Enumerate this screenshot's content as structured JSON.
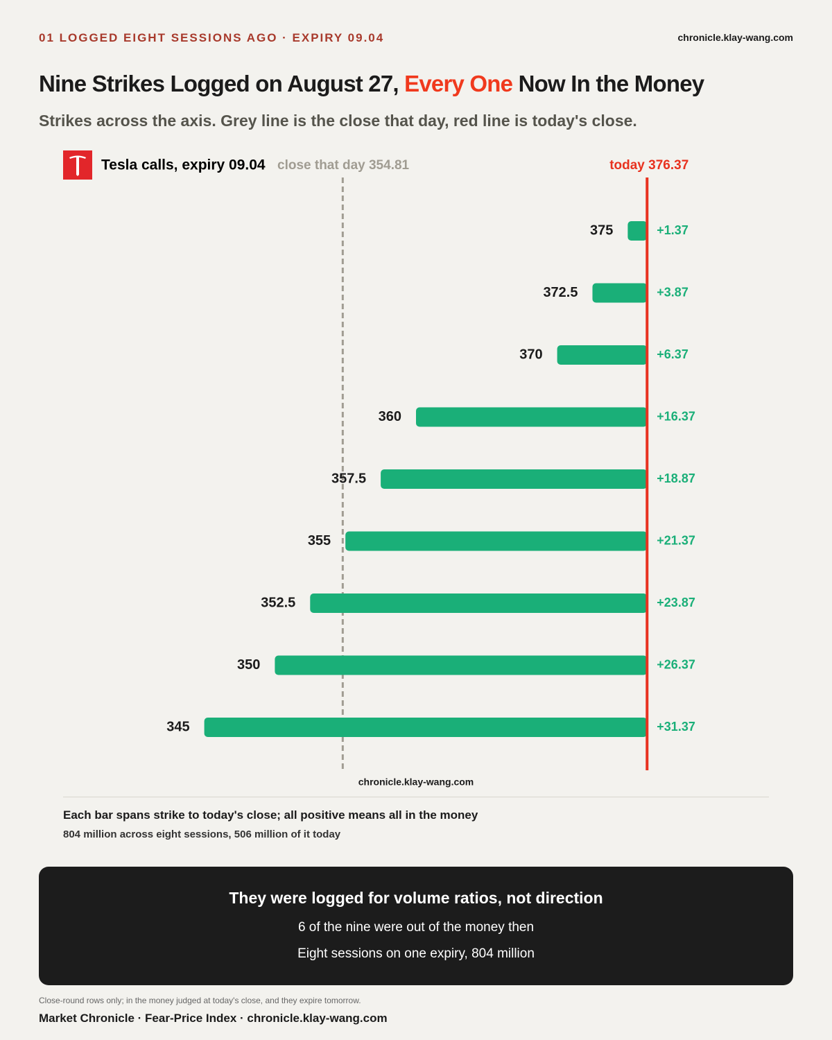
{
  "header": {
    "kicker": "01  LOGGED EIGHT SESSIONS AGO · EXPIRY 09.04",
    "site": "chronicle.klay-wang.com"
  },
  "title_parts": [
    "Nine Strikes Logged on August 27,",
    "Every One",
    "Now In the Money"
  ],
  "subtitle": "Strikes across the axis. Grey line is the close that day, red line is today's close.",
  "chart_data": {
    "type": "range-bar",
    "legend": "Tesla calls, expiry 09.04",
    "strikes": [
      375,
      372.5,
      370,
      360,
      357.5,
      355,
      352.5,
      350,
      345
    ],
    "values": [
      1.37,
      3.87,
      6.37,
      16.37,
      18.87,
      21.37,
      23.87,
      26.37,
      31.37
    ],
    "value_labels": [
      "+1.37",
      "+3.87",
      "+6.37",
      "+16.37",
      "+18.87",
      "+21.37",
      "+23.87",
      "+26.37",
      "+31.37"
    ],
    "color": "#1aaf78",
    "xlim": [
      335,
      385
    ],
    "close_that_day": {
      "value": 354.81,
      "label": "close that day 354.81",
      "color": "#a09c92"
    },
    "today": {
      "value": 376.37,
      "label": "today 376.37",
      "color": "#e8321f"
    },
    "watermark": "chronicle.klay-wang.com"
  },
  "notes": [
    "Each bar spans strike to today's close; all positive means all in the money",
    "804 million across eight sessions, 506 million of it today"
  ],
  "callout": {
    "title": "They were logged for volume ratios, not direction",
    "lines": [
      "6 of the nine were out of the money then",
      "Eight sessions on one expiry, 804 million"
    ]
  },
  "footnote": "Close-round rows only; in the money judged at today's close, and they expire tomorrow.",
  "footer": "Market Chronicle · Fear-Price Index · chronicle.klay-wang.com"
}
